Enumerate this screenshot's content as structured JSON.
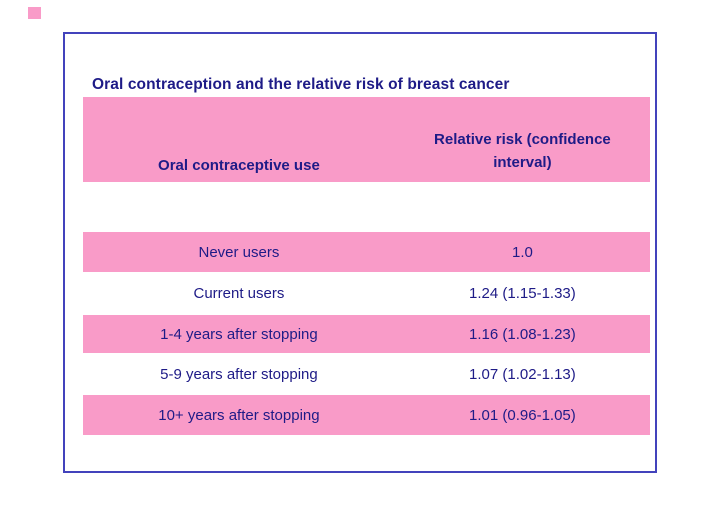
{
  "colors": {
    "band_pink": "#f99bc8",
    "text_navy": "#1e1b87",
    "border_blue": "#4343bc",
    "page_background": "#ffffff"
  },
  "slide": {
    "title": "Oral contraception and the relative risk of breast cancer",
    "table": {
      "col1_header": "Oral contraceptive use",
      "col2_header": "Relative risk (confidence interval)",
      "rows": [
        {
          "use": "Never users",
          "risk": "1.0"
        },
        {
          "use": "Current users",
          "risk": "1.24 (1.15-1.33)"
        },
        {
          "use": "1-4 years after stopping",
          "risk": "1.16 (1.08-1.23)"
        },
        {
          "use": "5-9 years after stopping",
          "risk": "1.07 (1.02-1.13)"
        },
        {
          "use": "10+ years after stopping",
          "risk": "1.01 (0.96-1.05)"
        }
      ]
    }
  }
}
